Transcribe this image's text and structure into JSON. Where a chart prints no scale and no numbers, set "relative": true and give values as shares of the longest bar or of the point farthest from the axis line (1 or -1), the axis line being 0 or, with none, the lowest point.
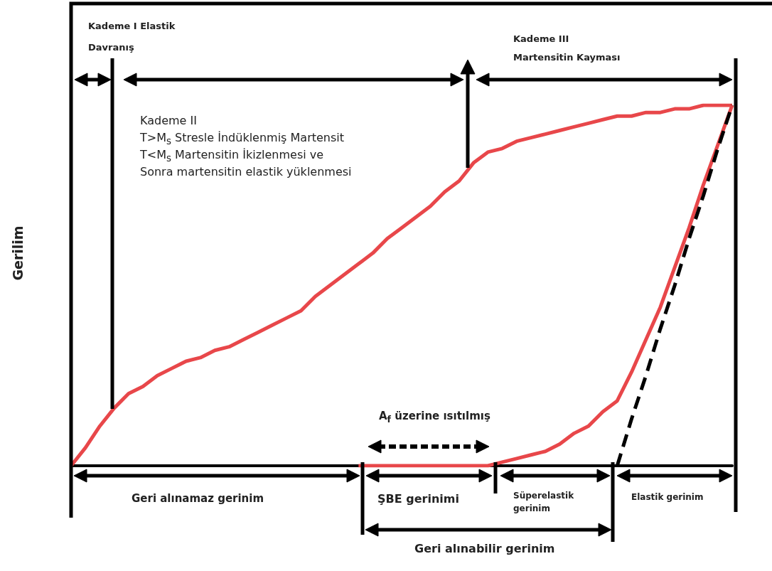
{
  "chart_data": {
    "type": "line",
    "relative": true,
    "ylabel": "Gerilim",
    "categories": [
      null,
      null,
      null,
      null,
      null,
      null,
      null,
      null,
      null,
      null,
      null,
      null,
      null,
      null,
      null,
      null,
      null,
      null,
      null,
      null,
      null,
      null,
      null,
      null,
      null,
      null,
      null,
      null,
      null,
      null,
      null,
      null,
      null,
      null,
      null,
      null,
      null,
      null,
      null,
      null,
      null,
      null,
      null,
      null,
      null,
      null,
      null
    ],
    "series": [
      {
        "color": "#e8474a",
        "values": [
          0,
          0.05,
          0.11,
          0.16,
          0.2,
          0.22,
          0.25,
          0.27,
          0.29,
          0.3,
          0.32,
          0.33,
          0.35,
          0.37,
          0.39,
          0.41,
          0.43,
          0.47,
          0.5,
          0.53,
          0.56,
          0.59,
          0.63,
          0.66,
          0.69,
          0.72,
          0.76,
          0.79,
          0.84,
          0.87,
          0.88,
          0.9,
          0.91,
          0.92,
          0.93,
          0.94,
          0.95,
          0.96,
          0.97,
          0.97,
          0.98,
          0.98,
          0.99,
          0.99,
          1,
          1,
          1
        ]
      },
      {
        "color": "#e8474a",
        "values": [
          null,
          null,
          null,
          null,
          null,
          null,
          null,
          null,
          null,
          null,
          null,
          null,
          null,
          null,
          null,
          null,
          null,
          null,
          null,
          null,
          0,
          0,
          0,
          0,
          0,
          0,
          0,
          0,
          0,
          0,
          0.01,
          0.02,
          0.03,
          0.04,
          0.06,
          0.09,
          0.11,
          0.15,
          0.18,
          0.26,
          0.35,
          0.44,
          0.55,
          0.66,
          0.78,
          0.89,
          1
        ]
      },
      {
        "color": "#000000",
        "line_style": "dashed",
        "values": [
          null,
          null,
          null,
          null,
          null,
          null,
          null,
          null,
          null,
          null,
          null,
          null,
          null,
          null,
          null,
          null,
          null,
          null,
          null,
          null,
          null,
          null,
          null,
          null,
          null,
          null,
          null,
          null,
          null,
          null,
          null,
          null,
          null,
          null,
          null,
          null,
          null,
          null,
          0,
          0.13,
          0.25,
          0.38,
          0.5,
          0.63,
          0.75,
          0.88,
          1
        ]
      }
    ],
    "marker": "none",
    "grid": false,
    "annotations": [
      "Kademe I Elastik Davranış",
      "Kademe II",
      "T>M$_{s}$ Stresle İndüklenmiş Martensit",
      "T<M$_{s}$ Martensitin İkizlenmesi ve",
      "Sonra martensitin elastik yüklenmesi",
      "Kademe III Martensitin Kayması",
      "A$_{f}$ üzerine ısıtılmış",
      "Geri alınamaz gerinim",
      "ŞBE gerinimi",
      "Süperelastik gerinim",
      "Elastik gerinim",
      "Geri alınabilir gerinim"
    ]
  }
}
